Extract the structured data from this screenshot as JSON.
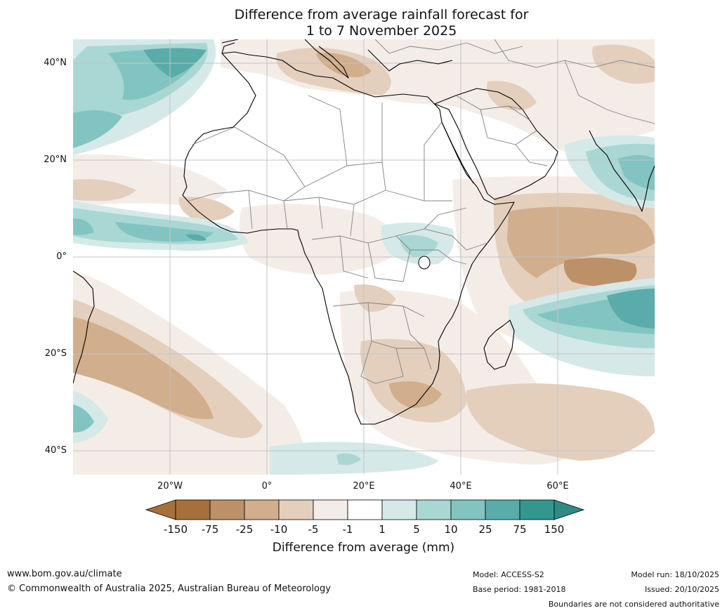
{
  "title": {
    "line1": "Difference from average rainfall forecast for",
    "line2": "1 to 7 November 2025"
  },
  "map": {
    "region": "Africa",
    "latitude_labels": [
      "40°N",
      "20°N",
      "0°",
      "20°S",
      "40°S"
    ],
    "longitude_labels": [
      "20°W",
      "0°",
      "20°E",
      "40°E",
      "60°E"
    ],
    "grid_color": "#c4c4c4",
    "coast_color": "#000000",
    "border_color": "#808080"
  },
  "colorbar": {
    "ticks": [
      "-150",
      "-75",
      "-25",
      "-10",
      "-5",
      "-1",
      "1",
      "5",
      "10",
      "25",
      "75",
      "150"
    ],
    "colors": [
      "#a6703a",
      "#bc9167",
      "#d1ae8c",
      "#e4cfbd",
      "#f4ede7",
      "#ffffff",
      "#d5e9e8",
      "#a9d7d4",
      "#82c4c1",
      "#59aca9",
      "#33978f"
    ],
    "under_color": "#a6703a",
    "over_color": "#2f8a86",
    "label": "Difference from average (mm)"
  },
  "footer": {
    "website": "www.bom.gov.au/climate",
    "copyright": "© Commonwealth of Australia 2025, Australian Bureau of Meteorology",
    "model": "Model: ACCESS-S2",
    "base_period": "Base period: 1981-2018",
    "model_run": "Model run: 18/10/2025",
    "issued": "Issued: 20/10/2025",
    "disclaimer": "Boundaries are not considered authoritative"
  }
}
